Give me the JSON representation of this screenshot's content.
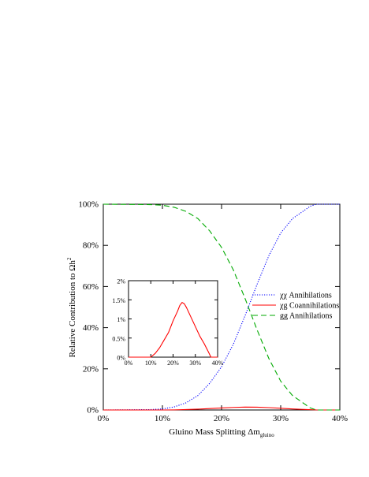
{
  "chart_data": [
    {
      "type": "line",
      "xlabel_main": "Gluino Mass Splitting Δm",
      "xlabel_sub": "gluino",
      "ylabel_main": "Relative Contribution to Ωh",
      "ylabel_sup": "2",
      "xlim": [
        0,
        40
      ],
      "ylim": [
        0,
        100
      ],
      "x_ticks": [
        "0%",
        "10%",
        "20%",
        "30%",
        "40%"
      ],
      "y_ticks": [
        "0%",
        "20%",
        "40%",
        "60%",
        "80%",
        "100%"
      ],
      "grid": false,
      "legend_position": "right",
      "series": [
        {
          "name": "χχ Annihilations",
          "color": "#0000ff",
          "style": "dotted",
          "x": [
            0,
            8,
            10,
            12,
            14,
            16,
            18,
            20,
            22,
            24,
            26,
            28,
            30,
            32,
            34,
            35,
            36,
            38,
            40
          ],
          "y": [
            0,
            0.2,
            0.5,
            1.5,
            3.5,
            7,
            13,
            21,
            32,
            46,
            61,
            75,
            86,
            93,
            97,
            99,
            100,
            100,
            100
          ]
        },
        {
          "name": "χg Coannihilations",
          "color": "#ff0000",
          "style": "solid",
          "x": [
            0,
            10,
            12,
            14,
            16,
            18,
            20,
            22,
            24,
            26,
            28,
            30,
            32,
            34,
            36,
            38,
            40
          ],
          "y": [
            0,
            0,
            0.05,
            0.2,
            0.4,
            0.7,
            1.0,
            1.25,
            1.4,
            1.35,
            1.15,
            0.85,
            0.5,
            0.25,
            0.05,
            0,
            0
          ]
        },
        {
          "name": "gg Annihilations",
          "color": "#00aa00",
          "style": "dashed",
          "x": [
            0,
            8,
            10,
            12,
            14,
            16,
            18,
            20,
            22,
            24,
            26,
            28,
            30,
            32,
            34,
            35,
            36,
            38,
            40
          ],
          "y": [
            100,
            99.8,
            99.5,
            98.5,
            96.5,
            93,
            87,
            79,
            68,
            54,
            39,
            25,
            14,
            7,
            3,
            1,
            0,
            0,
            0
          ]
        }
      ]
    },
    {
      "type": "line",
      "xlim": [
        0,
        40
      ],
      "ylim": [
        0,
        2
      ],
      "x_ticks": [
        "0%",
        "10%",
        "20%",
        "30%",
        "40%"
      ],
      "y_ticks": [
        "0%",
        "0.5%",
        "1%",
        "1.5%",
        "2%"
      ],
      "series": [
        {
          "name": "χg Coannihilations",
          "color": "#ff0000",
          "style": "solid",
          "x": [
            0,
            10,
            12,
            14,
            16,
            18,
            20,
            22,
            23,
            24,
            25,
            26,
            28,
            30,
            32,
            34,
            36,
            37,
            38,
            40
          ],
          "y": [
            0,
            0,
            0.1,
            0.25,
            0.45,
            0.65,
            0.95,
            1.2,
            1.35,
            1.43,
            1.4,
            1.3,
            1.05,
            0.8,
            0.55,
            0.35,
            0.12,
            0,
            0,
            0
          ]
        }
      ]
    }
  ]
}
